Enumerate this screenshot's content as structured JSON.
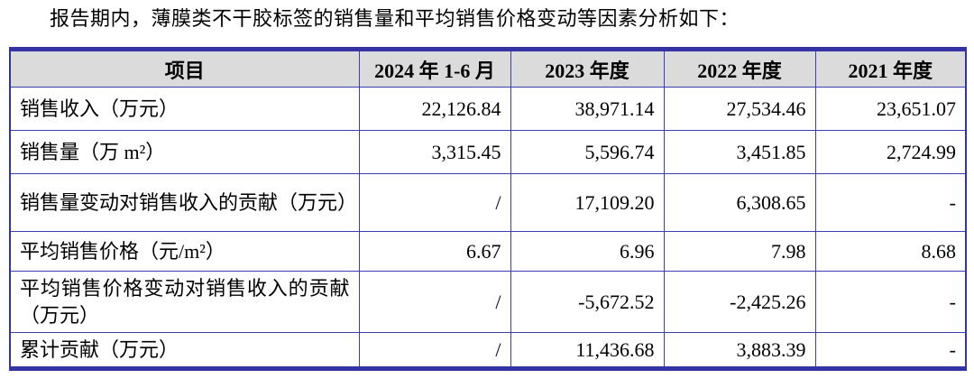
{
  "page": {
    "intro_text": "报告期内，薄膜类不干胶标签的销售量和平均销售价格变动等因素分析如下："
  },
  "table": {
    "columns": [
      "项目",
      "2024 年 1-6 月",
      "2023 年度",
      "2022 年度",
      "2021 年度"
    ],
    "rows": [
      {
        "label": "销售收入（万元）",
        "values": [
          "22,126.84",
          "38,971.14",
          "27,534.46",
          "23,651.07"
        ]
      },
      {
        "label": "销售量（万 m²）",
        "values": [
          "3,315.45",
          "5,596.74",
          "3,451.85",
          "2,724.99"
        ]
      },
      {
        "label": "销售量变动对销售收入的贡献（万元）",
        "values": [
          "/",
          "17,109.20",
          "6,308.65",
          "-"
        ]
      },
      {
        "label": "平均销售价格（元/m²）",
        "values": [
          "6.67",
          "6.96",
          "7.98",
          "8.68"
        ]
      },
      {
        "label": "平均销售价格变动对销售收入的贡献（万元）",
        "values": [
          "/",
          "-5,672.52",
          "-2,425.26",
          "-"
        ]
      },
      {
        "label": "累计贡献（万元）",
        "values": [
          "/",
          "11,436.68",
          "3,883.39",
          "-"
        ]
      }
    ],
    "colors": {
      "border_inner": "#3C3CB4",
      "border_outer": "#3333A3",
      "header_background": "#DBDBDB",
      "text": "#000000"
    }
  }
}
